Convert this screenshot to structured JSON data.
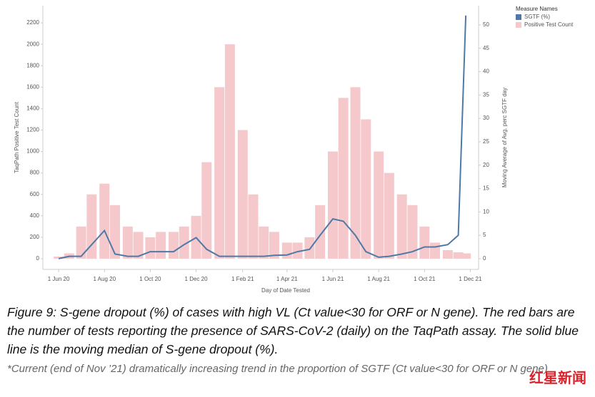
{
  "chart_data": {
    "type": "bar",
    "x_label": "Day of Date Tested",
    "y_label": "TaqPath Positive Test Count",
    "y2_label": "Moving Average of Avg. perc SGTF day",
    "legend_title": "Measure Names",
    "legend": "top-right",
    "x": [
      "2020-06-01",
      "2020-06-15",
      "2020-07-01",
      "2020-07-15",
      "2020-08-01",
      "2020-08-15",
      "2020-09-01",
      "2020-09-15",
      "2020-10-01",
      "2020-10-15",
      "2020-11-01",
      "2020-11-15",
      "2020-12-01",
      "2020-12-15",
      "2021-01-01",
      "2021-01-15",
      "2021-02-01",
      "2021-02-15",
      "2021-03-01",
      "2021-03-15",
      "2021-04-01",
      "2021-04-15",
      "2021-05-01",
      "2021-05-15",
      "2021-06-01",
      "2021-06-15",
      "2021-07-01",
      "2021-07-15",
      "2021-08-01",
      "2021-08-15",
      "2021-09-01",
      "2021-09-15",
      "2021-10-01",
      "2021-10-15",
      "2021-11-01",
      "2021-11-15",
      "2021-11-25"
    ],
    "series": [
      {
        "name": "SGTF (%)",
        "type": "line",
        "axis": "y2",
        "color": "#4e79a7",
        "values": [
          0,
          0.5,
          0.5,
          3,
          6,
          1,
          0.5,
          0.5,
          1.5,
          1.5,
          1.5,
          3,
          4.5,
          2,
          0.5,
          0.5,
          0.5,
          0.5,
          0.5,
          0.7,
          0.8,
          1.5,
          2,
          5,
          8.5,
          8,
          5,
          1.5,
          0.3,
          0.5,
          1,
          1.5,
          2.5,
          2.5,
          3,
          5,
          52
        ]
      },
      {
        "name": "Positive Test Count",
        "type": "bar",
        "color": "#f5c9cc",
        "values": [
          20,
          50,
          300,
          600,
          700,
          500,
          300,
          250,
          200,
          250,
          250,
          300,
          400,
          900,
          1600,
          2000,
          1200,
          600,
          300,
          250,
          150,
          150,
          200,
          500,
          1000,
          1500,
          1600,
          1300,
          1000,
          800,
          600,
          500,
          300,
          150,
          80,
          60,
          50
        ]
      }
    ],
    "xlim": [
      "2020-05-11",
      "2021-12-12"
    ],
    "xticks": [
      {
        "value": "2020-06-01",
        "label": "1 Jun 20"
      },
      {
        "value": "2020-08-01",
        "label": "1 Aug 20"
      },
      {
        "value": "2020-10-01",
        "label": "1 Oct 20"
      },
      {
        "value": "2020-12-01",
        "label": "1 Dec 20"
      },
      {
        "value": "2021-02-01",
        "label": "1 Feb 21"
      },
      {
        "value": "2021-04-01",
        "label": "1 Apr 21"
      },
      {
        "value": "2021-06-01",
        "label": "1 Jun 21"
      },
      {
        "value": "2021-08-01",
        "label": "1 Aug 21"
      },
      {
        "value": "2021-10-01",
        "label": "1 Oct 21"
      },
      {
        "value": "2021-12-01",
        "label": "1 Dec 21"
      }
    ],
    "ylim": [
      -100,
      2360
    ],
    "yticks": [
      0,
      200,
      400,
      600,
      800,
      1000,
      1200,
      1400,
      1600,
      1800,
      2000,
      2200
    ],
    "y2lim": [
      -2.3,
      54.1
    ],
    "y2ticks": [
      0,
      5,
      10,
      15,
      20,
      25,
      30,
      35,
      40,
      45,
      50
    ],
    "caption": "Figure 9: S-gene dropout (%) of cases with high VL (Ct value<30 for ORF or N gene). The red bars are the number of tests reporting the presence of SARS-CoV-2 (daily) on the TaqPath assay. The solid blue line is the moving median of S-gene dropout (%).",
    "note": "*Current (end of Nov ’21) dramatically increasing trend in the proportion of SGTF (Ct value<30 for ORF or N gene)",
    "watermark": "红星新闻"
  }
}
